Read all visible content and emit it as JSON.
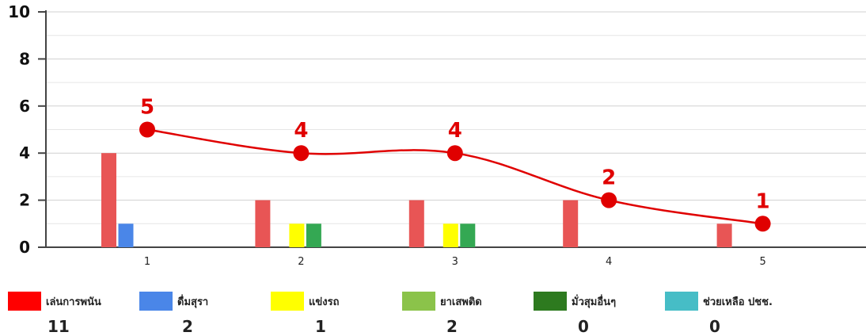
{
  "chart_data": {
    "type": "bar",
    "categories": [
      "1",
      "2",
      "3",
      "4",
      "5"
    ],
    "ylim": [
      0,
      10
    ],
    "yticks": [
      "0",
      "2",
      "4",
      "6",
      "8",
      "10"
    ],
    "grid": true,
    "series": [
      {
        "name": "เล่นการพนัน",
        "color": "#e85555",
        "values": [
          4,
          2,
          2,
          2,
          1
        ]
      },
      {
        "name": "ดื่มสุรา",
        "color": "#4a86e8",
        "values": [
          1,
          0,
          0,
          0,
          0
        ]
      },
      {
        "name": "แข่งรถ",
        "color": "#ffff00",
        "values": [
          0,
          1,
          1,
          0,
          0
        ]
      },
      {
        "name": "ยาเสพติด",
        "color": "#34a853",
        "values": [
          0,
          1,
          1,
          0,
          0
        ]
      },
      {
        "name": "มั่วสุมอื่นๆ",
        "color": "#2d7a1f",
        "values": [
          0,
          0,
          0,
          0,
          0
        ]
      },
      {
        "name": "ช่วยเหลือ ปชช.",
        "color": "#46bdc6",
        "values": [
          0,
          0,
          0,
          0,
          0
        ]
      }
    ],
    "line": {
      "color": "#e00000",
      "values": [
        5,
        4,
        4,
        2,
        1
      ],
      "labels": [
        "5",
        "4",
        "4",
        "2",
        "1"
      ]
    }
  },
  "legend": [
    {
      "label": "เล่นการพนัน",
      "count": "11",
      "color": "#ff0000"
    },
    {
      "label": "ดื่มสุรา",
      "count": "2",
      "color": "#4a86e8"
    },
    {
      "label": "แข่งรถ",
      "count": "1",
      "color": "#ffff00"
    },
    {
      "label": "ยาเสพติด",
      "count": "2",
      "color": "#8bc34a"
    },
    {
      "label": "มั่วสุมอื่นๆ",
      "count": "0",
      "color": "#2d7a1f"
    },
    {
      "label": "ช่วยเหลือ ปชช.",
      "count": "0",
      "color": "#46bdc6"
    }
  ]
}
